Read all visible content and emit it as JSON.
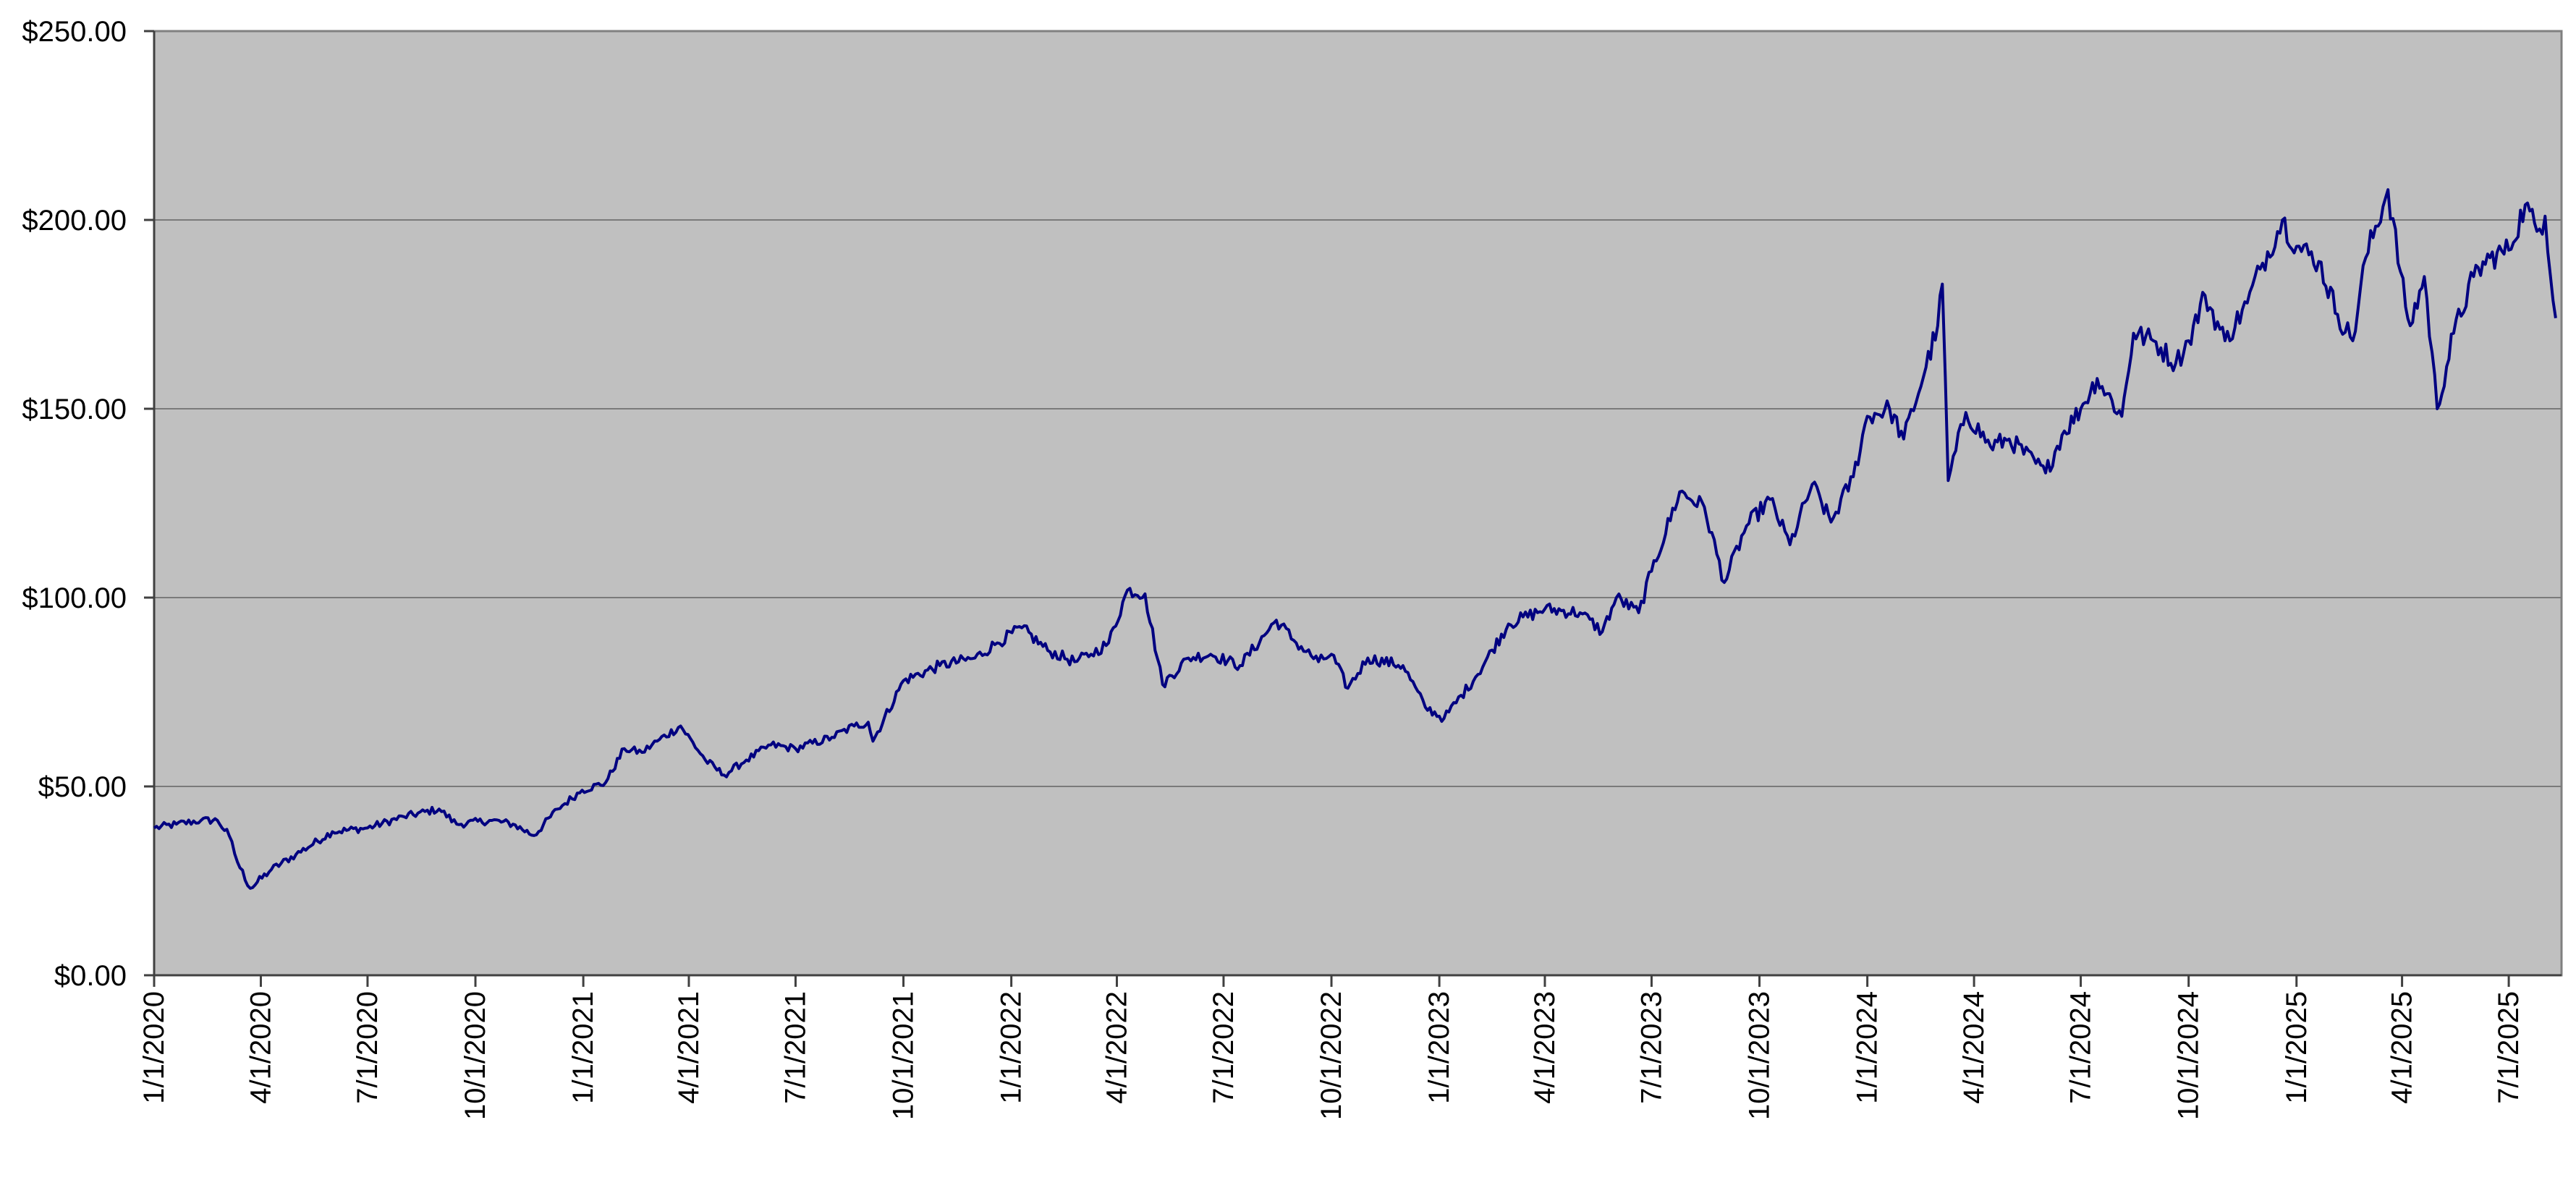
{
  "chart_data": {
    "type": "line",
    "title": "",
    "xlabel": "",
    "ylabel": "",
    "grid": true,
    "legend": "none",
    "ylim": [
      0,
      250
    ],
    "y_ticks": [
      0,
      50,
      100,
      150,
      200,
      250
    ],
    "y_tick_labels": [
      "$0.00",
      "$50.00",
      "$100.00",
      "$150.00",
      "$200.00",
      "$250.00"
    ],
    "xlim": [
      "2020-01-01",
      "2025-08-15"
    ],
    "x_ticks": [
      "2020-01-01",
      "2020-04-01",
      "2020-07-01",
      "2020-10-01",
      "2021-01-01",
      "2021-04-01",
      "2021-07-01",
      "2021-10-01",
      "2022-01-01",
      "2022-04-01",
      "2022-07-01",
      "2022-10-01",
      "2023-01-01",
      "2023-04-01",
      "2023-07-01",
      "2023-10-01",
      "2024-01-01",
      "2024-04-01",
      "2024-07-01",
      "2024-10-01",
      "2025-01-01",
      "2025-04-01",
      "2025-07-01"
    ],
    "x_tick_labels": [
      "1/1/2020",
      "4/1/2020",
      "7/1/2020",
      "10/1/2020",
      "1/1/2021",
      "4/1/2021",
      "7/1/2021",
      "10/1/2021",
      "1/1/2022",
      "4/1/2022",
      "7/1/2022",
      "10/1/2022",
      "1/1/2023",
      "4/1/2023",
      "7/1/2023",
      "10/1/2023",
      "1/1/2024",
      "4/1/2024",
      "7/1/2024",
      "10/1/2024",
      "1/1/2025",
      "4/1/2025",
      "7/1/2025"
    ],
    "colors": {
      "line": "#000080",
      "plot_background": "#c0c0c0"
    },
    "series": [
      {
        "x": [
          "2020-01-01",
          "2020-01-20",
          "2020-02-10",
          "2020-02-24",
          "2020-03-05",
          "2020-03-12",
          "2020-03-23",
          "2020-04-10",
          "2020-05-01",
          "2020-06-01",
          "2020-07-01",
          "2020-08-01",
          "2020-08-31",
          "2020-09-15",
          "2020-10-15",
          "2020-11-02",
          "2020-11-20",
          "2020-12-10",
          "2020-12-31",
          "2021-01-20",
          "2021-02-05",
          "2021-02-20",
          "2021-03-05",
          "2021-03-25",
          "2021-04-15",
          "2021-05-01",
          "2021-05-20",
          "2021-06-10",
          "2021-07-01",
          "2021-08-01",
          "2021-08-20",
          "2021-09-01",
          "2021-09-05",
          "2021-10-01",
          "2021-11-01",
          "2021-12-01",
          "2021-12-20",
          "2022-01-10",
          "2022-02-01",
          "2022-02-24",
          "2022-03-10",
          "2022-03-25",
          "2022-04-10",
          "2022-04-25",
          "2022-05-10",
          "2022-06-01",
          "2022-06-20",
          "2022-07-15",
          "2022-08-15",
          "2022-09-01",
          "2022-09-20",
          "2022-10-01",
          "2022-10-15",
          "2022-11-01",
          "2022-12-01",
          "2022-12-20",
          "2023-01-05",
          "2023-02-01",
          "2023-03-01",
          "2023-04-01",
          "2023-05-01",
          "2023-05-20",
          "2023-06-01",
          "2023-06-20",
          "2023-07-01",
          "2023-07-25",
          "2023-08-15",
          "2023-09-01",
          "2023-09-20",
          "2023-10-10",
          "2023-10-27",
          "2023-11-15",
          "2023-12-01",
          "2023-12-20",
          "2024-01-01",
          "2024-01-20",
          "2024-02-01",
          "2024-02-20",
          "2024-03-01",
          "2024-03-05",
          "2024-03-10",
          "2024-03-25",
          "2024-04-15",
          "2024-05-01",
          "2024-06-01",
          "2024-06-15",
          "2024-07-01",
          "2024-07-15",
          "2024-08-05",
          "2024-08-15",
          "2024-09-01",
          "2024-09-20",
          "2024-10-01",
          "2024-10-15",
          "2024-11-01",
          "2024-11-20",
          "2024-12-01",
          "2024-12-20",
          "2025-01-01",
          "2025-01-20",
          "2025-02-05",
          "2025-02-18",
          "2025-03-01",
          "2025-03-20",
          "2025-04-04",
          "2025-04-08",
          "2025-04-20",
          "2025-05-01",
          "2025-05-15",
          "2025-06-01",
          "2025-06-15",
          "2025-07-01",
          "2025-07-15",
          "2025-07-25",
          "2025-08-01",
          "2025-08-10"
        ],
        "y": [
          39,
          40,
          41,
          41,
          37,
          30,
          23,
          28,
          32,
          38,
          39,
          42,
          44,
          40,
          41,
          40,
          37,
          44,
          49,
          51,
          60,
          59,
          62,
          66,
          57,
          53,
          57,
          61,
          60,
          63,
          66,
          67,
          62,
          78,
          82,
          84,
          88,
          92,
          86,
          83,
          85,
          88,
          102,
          101,
          77,
          84,
          85,
          82,
          94,
          88,
          83,
          85,
          76,
          84,
          82,
          71,
          68,
          79,
          93,
          97,
          96,
          91,
          100,
          96,
          107,
          128,
          124,
          104,
          119,
          126,
          114,
          130,
          120,
          132,
          148,
          150,
          142,
          161,
          172,
          183,
          131,
          149,
          140,
          142,
          133,
          143,
          150,
          158,
          148,
          170,
          168,
          162,
          168,
          180,
          168,
          178,
          187,
          200,
          193,
          189,
          175,
          168,
          190,
          208,
          177,
          172,
          185,
          150,
          170,
          185,
          190,
          192,
          204,
          197,
          201,
          174
        ]
      }
    ]
  }
}
